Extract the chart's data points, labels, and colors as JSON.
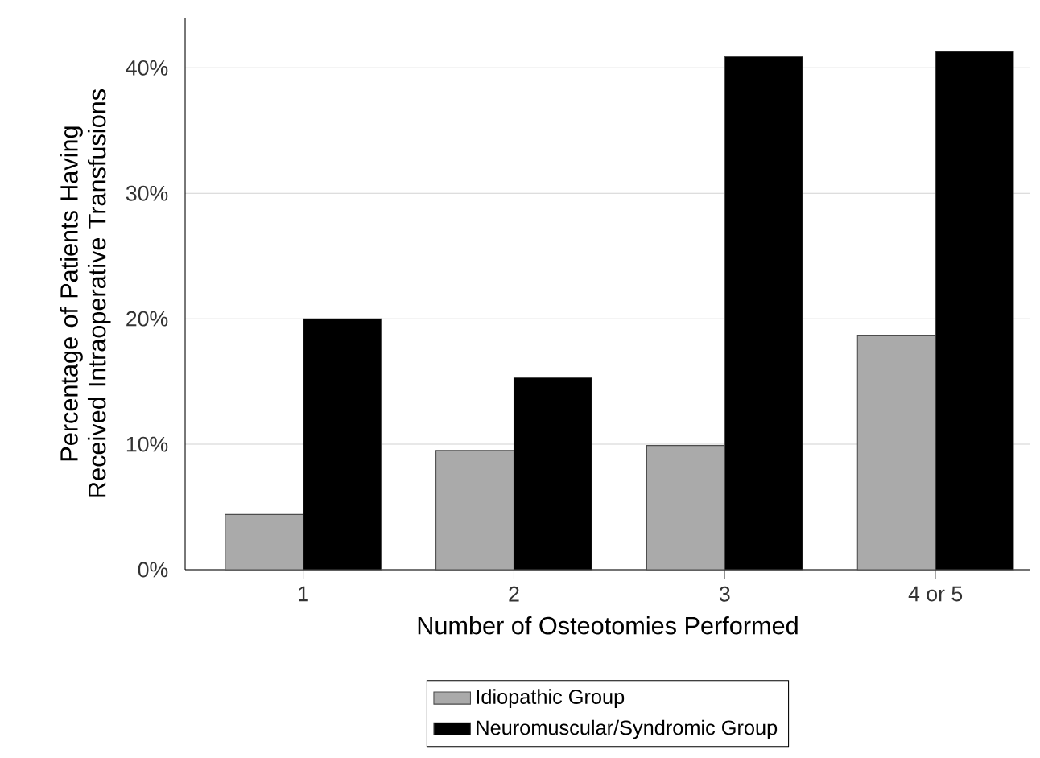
{
  "chart_data": {
    "type": "bar",
    "xlabel": "Number of Osteotomies Performed",
    "ylabel": "Percentage of Patients Having Received Intraoperative Transfusions",
    "categories": [
      "1",
      "2",
      "3",
      "4 or 5"
    ],
    "series": [
      {
        "name": "Idiopathic Group",
        "color": "#aaaaaa",
        "values": [
          4.4,
          9.5,
          9.9,
          18.7
        ]
      },
      {
        "name": "Neuromuscular/Syndromic Group",
        "color": "#000000",
        "values": [
          20,
          15.3,
          40.9,
          41.3
        ]
      }
    ],
    "ylim": [
      0,
      44
    ],
    "yticks": [
      {
        "value": 0,
        "label": "0%"
      },
      {
        "value": 10,
        "label": "10%"
      },
      {
        "value": 20,
        "label": "20%"
      },
      {
        "value": 30,
        "label": "30%"
      },
      {
        "value": 40,
        "label": "40%"
      }
    ],
    "grid": "y",
    "legend": "bottom"
  }
}
